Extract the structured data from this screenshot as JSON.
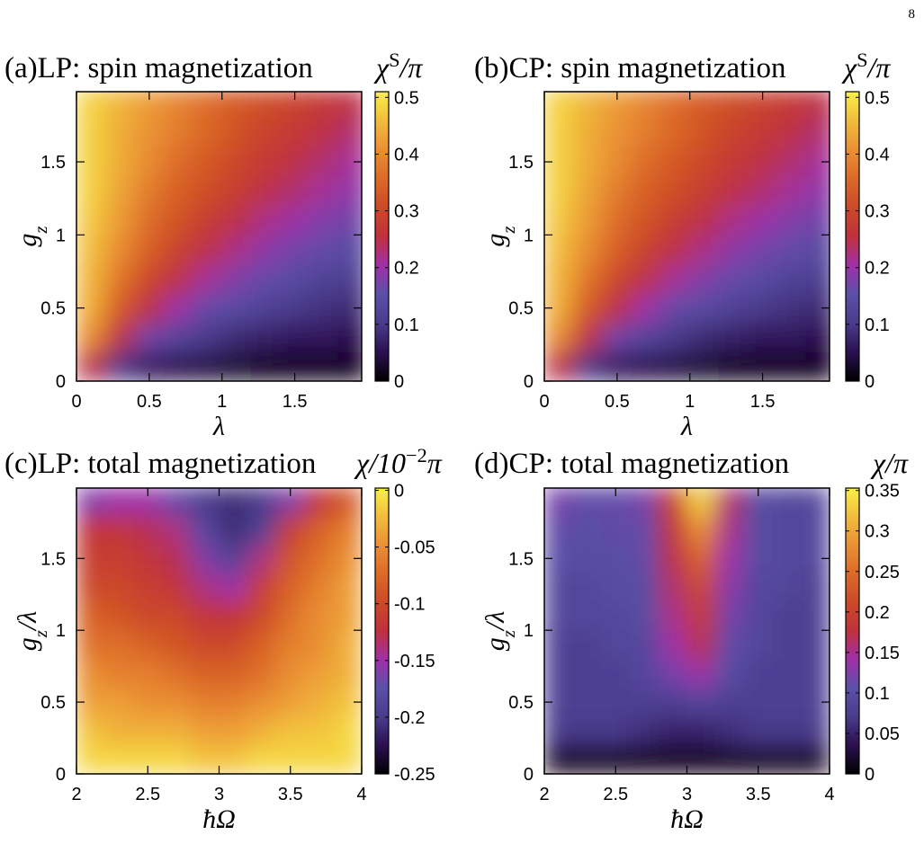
{
  "page_number": "8",
  "colormap": [
    [
      0,
      "#000000"
    ],
    [
      0.1,
      "#2b1050"
    ],
    [
      0.2,
      "#4a3c8c"
    ],
    [
      0.3,
      "#5a50a8"
    ],
    [
      0.4,
      "#a030a8"
    ],
    [
      0.5,
      "#c0303c"
    ],
    [
      0.6,
      "#cc4a28"
    ],
    [
      0.7,
      "#dc6a28"
    ],
    [
      0.8,
      "#ea9034"
    ],
    [
      0.9,
      "#f2bc3c"
    ],
    [
      1,
      "#f8f048"
    ]
  ],
  "chart_data": [
    {
      "type": "heatmap",
      "title": "(a)LP: spin magnetization",
      "colorbar_label": [
        {
          "text": "χ"
        },
        {
          "text": "S",
          "pos": "sup"
        },
        {
          "text": "/π"
        }
      ],
      "xlabel": [
        {
          "text": "λ"
        }
      ],
      "ylabel": [
        {
          "text": "g"
        },
        {
          "text": "z",
          "pos": "sub"
        }
      ],
      "xlim": [
        0,
        1.96
      ],
      "ylim": [
        0,
        1.98
      ],
      "zlim": [
        0,
        0.51
      ],
      "xticks": [
        0,
        0.5,
        1,
        1.5
      ],
      "yticks": [
        0,
        0.5,
        1,
        1.5
      ],
      "zticks": [
        0,
        0.1,
        0.2,
        0.3,
        0.4,
        0.5
      ],
      "x": [
        0.1,
        0.3,
        0.5,
        0.7,
        0.9,
        1.1,
        1.3,
        1.5,
        1.7,
        1.9
      ],
      "y": [
        0.1,
        0.3,
        0.5,
        0.7,
        0.9,
        1.1,
        1.3,
        1.5,
        1.7,
        1.9
      ],
      "z": [
        [
          0.25,
          0.1,
          0.06,
          0.05,
          0.04,
          0.03,
          0.02,
          0.02,
          0.02,
          0.02
        ],
        [
          0.4,
          0.25,
          0.17,
          0.13,
          0.1,
          0.08,
          0.07,
          0.06,
          0.06,
          0.05
        ],
        [
          0.44,
          0.33,
          0.25,
          0.2,
          0.16,
          0.14,
          0.12,
          0.1,
          0.09,
          0.08
        ],
        [
          0.45,
          0.37,
          0.3,
          0.25,
          0.21,
          0.18,
          0.16,
          0.14,
          0.12,
          0.11
        ],
        [
          0.46,
          0.4,
          0.34,
          0.29,
          0.25,
          0.22,
          0.19,
          0.17,
          0.16,
          0.14
        ],
        [
          0.47,
          0.42,
          0.36,
          0.32,
          0.28,
          0.25,
          0.22,
          0.2,
          0.18,
          0.17
        ],
        [
          0.48,
          0.43,
          0.38,
          0.34,
          0.31,
          0.28,
          0.25,
          0.23,
          0.21,
          0.19
        ],
        [
          0.48,
          0.44,
          0.4,
          0.36,
          0.33,
          0.3,
          0.27,
          0.25,
          0.23,
          0.21
        ],
        [
          0.48,
          0.44,
          0.41,
          0.38,
          0.35,
          0.32,
          0.29,
          0.27,
          0.25,
          0.23
        ],
        [
          0.48,
          0.45,
          0.42,
          0.39,
          0.36,
          0.33,
          0.31,
          0.29,
          0.27,
          0.25
        ]
      ]
    },
    {
      "type": "heatmap",
      "title": "(b)CP: spin magnetization",
      "colorbar_label": [
        {
          "text": "χ"
        },
        {
          "text": "S",
          "pos": "sup"
        },
        {
          "text": "/π"
        }
      ],
      "xlabel": [
        {
          "text": "λ"
        }
      ],
      "ylabel": [
        {
          "text": "g"
        },
        {
          "text": "z",
          "pos": "sub"
        }
      ],
      "xlim": [
        0,
        1.96
      ],
      "ylim": [
        0,
        1.98
      ],
      "zlim": [
        0,
        0.51
      ],
      "xticks": [
        0,
        0.5,
        1,
        1.5
      ],
      "yticks": [
        0,
        0.5,
        1,
        1.5
      ],
      "zticks": [
        0,
        0.1,
        0.2,
        0.3,
        0.4,
        0.5
      ],
      "x": [
        0.1,
        0.3,
        0.5,
        0.7,
        0.9,
        1.1,
        1.3,
        1.5,
        1.7,
        1.9
      ],
      "y": [
        0.1,
        0.3,
        0.5,
        0.7,
        0.9,
        1.1,
        1.3,
        1.5,
        1.7,
        1.9
      ],
      "z": [
        [
          0.25,
          0.1,
          0.06,
          0.05,
          0.04,
          0.03,
          0.02,
          0.02,
          0.02,
          0.02
        ],
        [
          0.4,
          0.25,
          0.17,
          0.13,
          0.1,
          0.08,
          0.07,
          0.06,
          0.06,
          0.05
        ],
        [
          0.44,
          0.33,
          0.25,
          0.2,
          0.16,
          0.14,
          0.12,
          0.1,
          0.09,
          0.08
        ],
        [
          0.45,
          0.37,
          0.3,
          0.25,
          0.21,
          0.18,
          0.16,
          0.14,
          0.12,
          0.11
        ],
        [
          0.46,
          0.4,
          0.34,
          0.29,
          0.25,
          0.22,
          0.19,
          0.17,
          0.16,
          0.14
        ],
        [
          0.47,
          0.42,
          0.36,
          0.32,
          0.28,
          0.25,
          0.22,
          0.2,
          0.18,
          0.17
        ],
        [
          0.48,
          0.43,
          0.38,
          0.34,
          0.31,
          0.28,
          0.25,
          0.23,
          0.21,
          0.19
        ],
        [
          0.48,
          0.44,
          0.4,
          0.36,
          0.33,
          0.3,
          0.27,
          0.25,
          0.23,
          0.21
        ],
        [
          0.48,
          0.44,
          0.41,
          0.38,
          0.35,
          0.32,
          0.29,
          0.27,
          0.25,
          0.23
        ],
        [
          0.48,
          0.45,
          0.42,
          0.39,
          0.36,
          0.33,
          0.31,
          0.29,
          0.27,
          0.25
        ]
      ]
    },
    {
      "type": "heatmap",
      "title": "(c)LP: total magnetization",
      "colorbar_label": [
        {
          "text": "χ/10"
        },
        {
          "text": "−2",
          "pos": "sup"
        },
        {
          "text": "π"
        }
      ],
      "xlabel": [
        {
          "text": "ħΩ"
        }
      ],
      "ylabel": [
        {
          "text": "g"
        },
        {
          "text": "z",
          "pos": "sub"
        },
        {
          "text": "/λ"
        }
      ],
      "xlim": [
        2,
        4
      ],
      "ylim": [
        0,
        1.99
      ],
      "zlim": [
        -0.25,
        0.002
      ],
      "xticks": [
        2,
        2.5,
        3,
        3.5,
        4
      ],
      "yticks": [
        0,
        0.5,
        1,
        1.5
      ],
      "zticks": [
        0,
        -0.05,
        -0.1,
        -0.15,
        -0.2,
        -0.25
      ],
      "x": [
        2.1,
        2.3,
        2.5,
        2.7,
        2.9,
        3.1,
        3.3,
        3.5,
        3.7,
        3.9
      ],
      "y": [
        0.1,
        0.3,
        0.5,
        0.7,
        0.9,
        1.1,
        1.3,
        1.5,
        1.7,
        1.9
      ],
      "z": [
        [
          -0.01,
          -0.01,
          -0.01,
          -0.01,
          -0.02,
          -0.02,
          -0.01,
          -0.01,
          -0.01,
          -0.01
        ],
        [
          -0.02,
          -0.03,
          -0.03,
          -0.03,
          -0.04,
          -0.04,
          -0.03,
          -0.02,
          -0.02,
          -0.01
        ],
        [
          -0.04,
          -0.04,
          -0.05,
          -0.05,
          -0.06,
          -0.06,
          -0.05,
          -0.04,
          -0.03,
          -0.02
        ],
        [
          -0.05,
          -0.06,
          -0.06,
          -0.07,
          -0.08,
          -0.08,
          -0.07,
          -0.05,
          -0.04,
          -0.03
        ],
        [
          -0.07,
          -0.07,
          -0.08,
          -0.09,
          -0.1,
          -0.1,
          -0.08,
          -0.06,
          -0.05,
          -0.03
        ],
        [
          -0.08,
          -0.09,
          -0.1,
          -0.1,
          -0.12,
          -0.12,
          -0.1,
          -0.07,
          -0.05,
          -0.04
        ],
        [
          -0.1,
          -0.1,
          -0.11,
          -0.12,
          -0.14,
          -0.15,
          -0.11,
          -0.08,
          -0.06,
          -0.04
        ],
        [
          -0.11,
          -0.11,
          -0.12,
          -0.13,
          -0.16,
          -0.19,
          -0.14,
          -0.09,
          -0.07,
          -0.05
        ],
        [
          -0.12,
          -0.12,
          -0.13,
          -0.14,
          -0.18,
          -0.21,
          -0.19,
          -0.11,
          -0.08,
          -0.06
        ],
        [
          -0.16,
          -0.15,
          -0.15,
          -0.17,
          -0.2,
          -0.21,
          -0.2,
          -0.16,
          -0.12,
          -0.09
        ]
      ]
    },
    {
      "type": "heatmap",
      "title": "(d)CP: total magnetization",
      "colorbar_label": [
        {
          "text": "χ/π"
        }
      ],
      "xlabel": [
        {
          "text": "ħΩ"
        }
      ],
      "ylabel": [
        {
          "text": "g"
        },
        {
          "text": "z",
          "pos": "sub"
        },
        {
          "text": "/λ"
        }
      ],
      "xlim": [
        2,
        4
      ],
      "ylim": [
        0,
        1.99
      ],
      "zlim": [
        0,
        0.353
      ],
      "xticks": [
        2,
        2.5,
        3,
        3.5,
        4
      ],
      "yticks": [
        0,
        0.5,
        1,
        1.5
      ],
      "zticks": [
        0,
        0.05,
        0.1,
        0.15,
        0.2,
        0.25,
        0.3,
        0.35
      ],
      "x": [
        2.1,
        2.3,
        2.5,
        2.7,
        2.9,
        3.1,
        3.3,
        3.5,
        3.7,
        3.9
      ],
      "y": [
        0.1,
        0.3,
        0.5,
        0.7,
        0.9,
        1.1,
        1.3,
        1.5,
        1.7,
        1.9
      ],
      "z": [
        [
          0.01,
          0.01,
          0.01,
          0.01,
          0.01,
          0.01,
          0.01,
          0.01,
          0.01,
          0.01
        ],
        [
          0.07,
          0.07,
          0.07,
          0.06,
          0.05,
          0.05,
          0.06,
          0.07,
          0.07,
          0.07
        ],
        [
          0.08,
          0.08,
          0.08,
          0.08,
          0.08,
          0.09,
          0.08,
          0.08,
          0.08,
          0.08
        ],
        [
          0.08,
          0.08,
          0.08,
          0.09,
          0.12,
          0.14,
          0.1,
          0.08,
          0.08,
          0.08
        ],
        [
          0.08,
          0.08,
          0.09,
          0.09,
          0.14,
          0.17,
          0.11,
          0.09,
          0.08,
          0.08
        ],
        [
          0.09,
          0.09,
          0.09,
          0.1,
          0.15,
          0.19,
          0.12,
          0.09,
          0.08,
          0.08
        ],
        [
          0.09,
          0.09,
          0.1,
          0.1,
          0.16,
          0.21,
          0.13,
          0.09,
          0.09,
          0.08
        ],
        [
          0.1,
          0.1,
          0.1,
          0.11,
          0.17,
          0.24,
          0.14,
          0.1,
          0.09,
          0.09
        ],
        [
          0.11,
          0.1,
          0.11,
          0.11,
          0.18,
          0.28,
          0.15,
          0.1,
          0.09,
          0.09
        ],
        [
          0.12,
          0.11,
          0.11,
          0.12,
          0.2,
          0.33,
          0.16,
          0.1,
          0.09,
          0.09
        ]
      ]
    }
  ]
}
